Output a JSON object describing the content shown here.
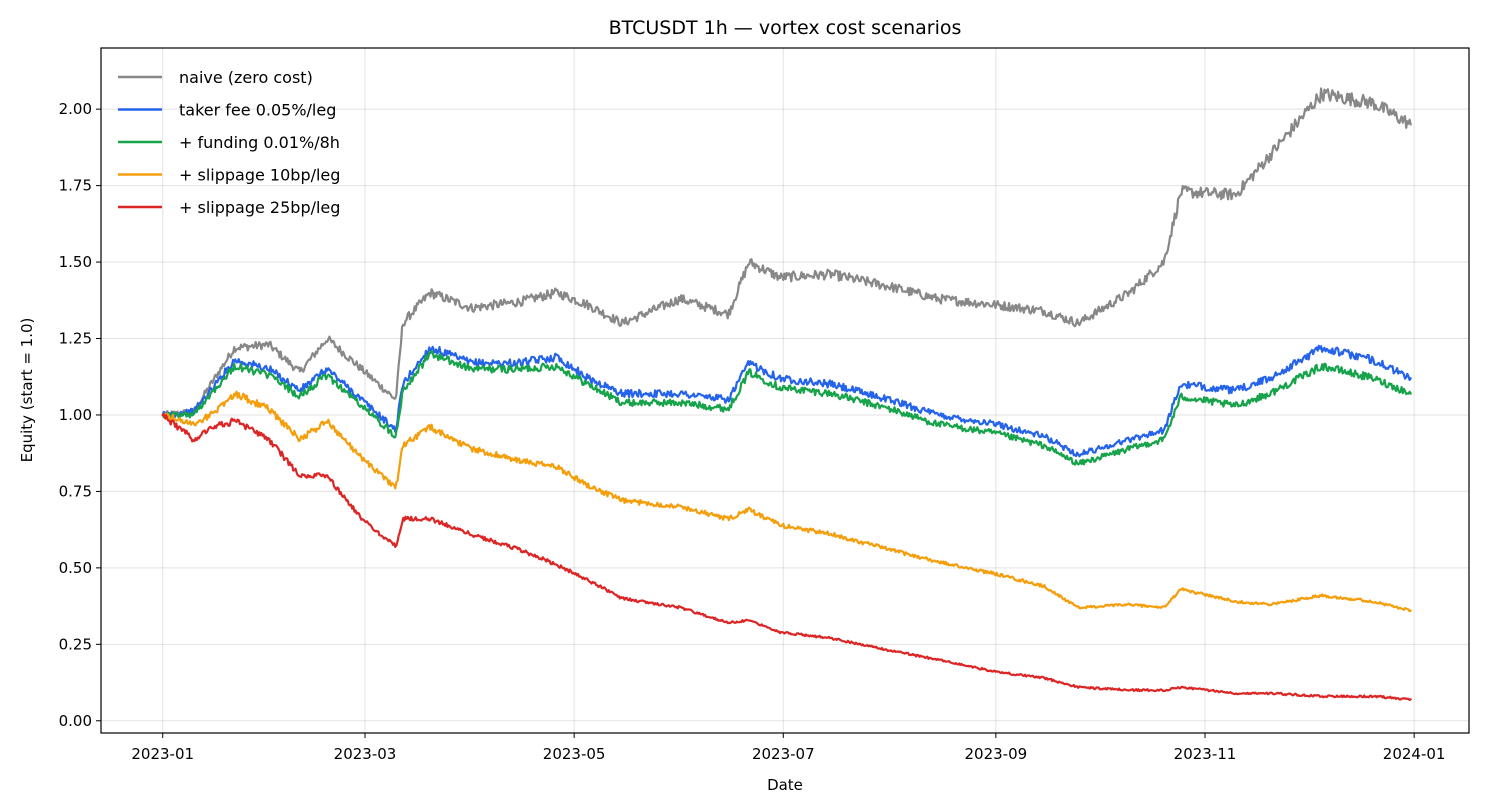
{
  "chart_data": {
    "type": "line",
    "title": "BTCUSDT 1h — vortex cost scenarios",
    "xlabel": "Date",
    "ylabel": "Equity (start = 1.0)",
    "x_tick_labels": [
      "2023-01",
      "2023-03",
      "2023-05",
      "2023-07",
      "2023-09",
      "2023-11",
      "2024-01"
    ],
    "y_tick_labels": [
      "0.00",
      "0.25",
      "0.50",
      "0.75",
      "1.00",
      "1.25",
      "1.50",
      "1.75",
      "2.00"
    ],
    "xlim": [
      "2022-12-14",
      "2024-01-17"
    ],
    "ylim": [
      -0.04,
      2.2
    ],
    "grid": true,
    "legend": "top-left",
    "x": [
      "2023-01-01",
      "2023-01-10",
      "2023-01-15",
      "2023-01-22",
      "2023-02-01",
      "2023-02-10",
      "2023-02-18",
      "2023-02-28",
      "2023-03-10",
      "2023-03-12",
      "2023-03-20",
      "2023-04-01",
      "2023-04-15",
      "2023-04-26",
      "2023-05-05",
      "2023-05-15",
      "2023-06-01",
      "2023-06-15",
      "2023-06-21",
      "2023-06-30",
      "2023-07-15",
      "2023-08-01",
      "2023-08-15",
      "2023-09-01",
      "2023-09-15",
      "2023-09-25",
      "2023-10-10",
      "2023-10-20",
      "2023-10-25",
      "2023-11-10",
      "2023-11-20",
      "2023-12-05",
      "2023-12-20",
      "2023-12-31"
    ],
    "series": [
      {
        "name": "naive (zero cost)",
        "color": "#888888",
        "values": [
          1.0,
          1.01,
          1.1,
          1.22,
          1.23,
          1.14,
          1.25,
          1.15,
          1.05,
          1.3,
          1.4,
          1.35,
          1.37,
          1.4,
          1.36,
          1.3,
          1.38,
          1.33,
          1.5,
          1.45,
          1.46,
          1.42,
          1.38,
          1.36,
          1.34,
          1.3,
          1.4,
          1.5,
          1.73,
          1.72,
          1.85,
          2.05,
          2.02,
          1.95
        ]
      },
      {
        "name": "taker fee 0.05%/leg",
        "color": "#2563eb",
        "values": [
          1.0,
          1.01,
          1.08,
          1.18,
          1.15,
          1.08,
          1.15,
          1.05,
          0.95,
          1.1,
          1.22,
          1.17,
          1.17,
          1.19,
          1.12,
          1.07,
          1.07,
          1.05,
          1.17,
          1.12,
          1.1,
          1.05,
          1.0,
          0.97,
          0.93,
          0.87,
          0.92,
          0.95,
          1.1,
          1.08,
          1.12,
          1.22,
          1.18,
          1.12
        ]
      },
      {
        "name": "+ funding 0.01%/8h",
        "color": "#16a34a",
        "values": [
          1.0,
          1.0,
          1.07,
          1.16,
          1.13,
          1.06,
          1.13,
          1.03,
          0.93,
          1.08,
          1.2,
          1.15,
          1.15,
          1.16,
          1.1,
          1.04,
          1.04,
          1.02,
          1.14,
          1.09,
          1.07,
          1.02,
          0.97,
          0.94,
          0.9,
          0.84,
          0.89,
          0.92,
          1.06,
          1.03,
          1.07,
          1.16,
          1.12,
          1.07
        ]
      },
      {
        "name": "+ slippage 10bp/leg",
        "color": "#f59e0b",
        "values": [
          1.0,
          0.97,
          1.0,
          1.07,
          1.02,
          0.92,
          0.98,
          0.86,
          0.76,
          0.9,
          0.96,
          0.89,
          0.85,
          0.83,
          0.77,
          0.72,
          0.7,
          0.66,
          0.69,
          0.64,
          0.61,
          0.56,
          0.52,
          0.48,
          0.44,
          0.37,
          0.38,
          0.37,
          0.43,
          0.39,
          0.38,
          0.41,
          0.39,
          0.36
        ]
      },
      {
        "name": "+ slippage 25bp/leg",
        "color": "#dc2626",
        "values": [
          1.0,
          0.92,
          0.96,
          0.98,
          0.92,
          0.8,
          0.8,
          0.66,
          0.57,
          0.66,
          0.66,
          0.61,
          0.56,
          0.51,
          0.46,
          0.4,
          0.37,
          0.32,
          0.33,
          0.29,
          0.27,
          0.23,
          0.2,
          0.16,
          0.14,
          0.11,
          0.1,
          0.1,
          0.11,
          0.09,
          0.09,
          0.08,
          0.08,
          0.07
        ]
      }
    ]
  }
}
